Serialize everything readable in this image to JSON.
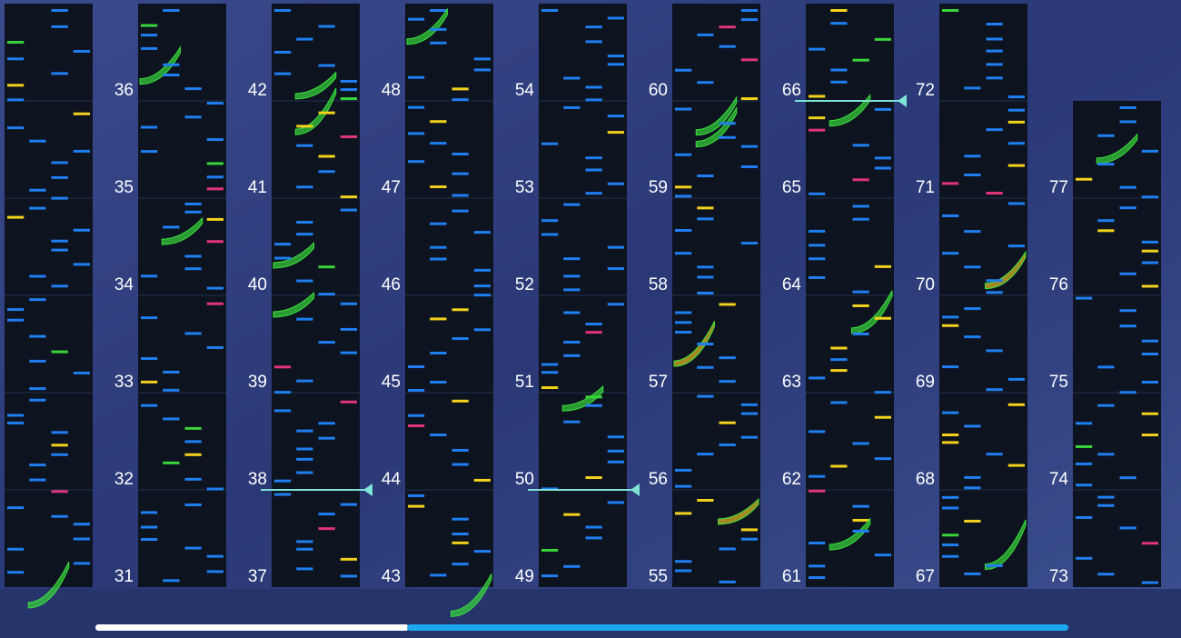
{
  "columns": [
    {
      "measures": [
        31,
        32,
        33,
        34,
        35,
        36
      ]
    },
    {
      "measures": [
        37,
        38,
        39,
        40,
        41,
        42
      ]
    },
    {
      "measures": [
        43,
        44,
        45,
        46,
        47,
        48
      ]
    },
    {
      "measures": [
        49,
        50,
        51,
        52,
        53,
        54
      ]
    },
    {
      "measures": [
        55,
        56,
        57,
        58,
        59,
        60
      ]
    },
    {
      "measures": [
        61,
        62,
        63,
        64,
        65,
        66
      ]
    },
    {
      "measures": [
        67,
        68,
        69,
        70,
        71,
        72
      ]
    },
    {
      "measures": [
        73,
        74,
        75,
        76,
        77
      ]
    }
  ]
}
